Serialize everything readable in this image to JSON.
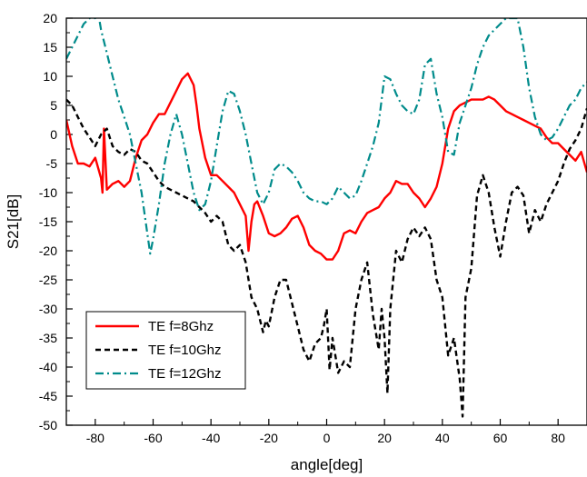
{
  "chart_data": {
    "type": "line",
    "title": "",
    "xlabel": "angle[deg]",
    "ylabel": "S21[dB]",
    "xlim": [
      -90,
      90
    ],
    "ylim": [
      -50,
      20
    ],
    "x_ticks": [
      -80,
      -60,
      -40,
      -20,
      0,
      20,
      40,
      60,
      80
    ],
    "x_tick_labels": [
      "-80",
      "-60",
      "-40",
      "-20",
      "0",
      "20",
      "40",
      "60",
      "80"
    ],
    "y_ticks": [
      20,
      15,
      10,
      5,
      0,
      -5,
      -10,
      -15,
      -20,
      -25,
      -30,
      -35,
      -40,
      -45,
      -50
    ],
    "y_tick_labels": [
      "20",
      "15",
      "10",
      "5",
      "0",
      "-5",
      "-10",
      "-15",
      "-20",
      "-25",
      "-30",
      "-35",
      "-40",
      "-45",
      "-50"
    ],
    "grid": false,
    "legend_position": "bottom-left",
    "series": [
      {
        "name": "TE f=8Ghz",
        "color": "#ff0000",
        "dash": "solid",
        "x": [
          -90,
          -88,
          -86,
          -84,
          -82,
          -80,
          -78,
          -77.5,
          -77,
          -76,
          -74,
          -72,
          -70,
          -68,
          -66,
          -64,
          -62,
          -60,
          -58,
          -56,
          -54,
          -52,
          -50,
          -48,
          -46,
          -45,
          -44,
          -42,
          -40,
          -38,
          -36,
          -34,
          -32,
          -30,
          -28,
          -27,
          -26,
          -25,
          -24,
          -22,
          -20,
          -18,
          -16,
          -14,
          -12,
          -10,
          -8,
          -6,
          -4,
          -2,
          0,
          2,
          4,
          6,
          8,
          10,
          12,
          14,
          16,
          18,
          20,
          22,
          24,
          26,
          28,
          30,
          32,
          34,
          36,
          38,
          40,
          42,
          44,
          46,
          48,
          50,
          52,
          54,
          56,
          58,
          60,
          62,
          64,
          66,
          68,
          70,
          72,
          74,
          76,
          78,
          80,
          82,
          84,
          86,
          88,
          90
        ],
        "y": [
          2.5,
          -2,
          -5,
          -5,
          -5.5,
          -4,
          -7.5,
          -10,
          1,
          -9.5,
          -8.5,
          -8,
          -9,
          -8,
          -4,
          -1,
          0,
          2,
          3.5,
          3.5,
          5.5,
          7.5,
          9.5,
          10.5,
          8.5,
          5,
          1,
          -4,
          -7,
          -7,
          -8,
          -9,
          -10,
          -12,
          -14,
          -20,
          -15,
          -12,
          -11.5,
          -14,
          -17,
          -17.5,
          -17,
          -16,
          -14.5,
          -14,
          -16,
          -19,
          -20,
          -20.5,
          -21.5,
          -21.5,
          -20,
          -17,
          -16.5,
          -17,
          -15,
          -13.5,
          -13,
          -12.5,
          -11,
          -10,
          -8,
          -8.5,
          -8.5,
          -10,
          -11,
          -12.5,
          -11,
          -9,
          -5,
          1,
          4,
          5,
          5.5,
          6,
          6,
          6,
          6.5,
          6,
          5,
          4,
          3.5,
          3,
          2.5,
          2,
          1.5,
          1,
          -0.5,
          -1.5,
          -1.5,
          -2.5,
          -3.5,
          -4.5,
          -3,
          -6.5
        ]
      },
      {
        "name": "TE f=10Ghz",
        "color": "#000000",
        "dash": "dashed",
        "x": [
          -90,
          -88,
          -86,
          -84,
          -82,
          -80,
          -78,
          -76,
          -74,
          -72,
          -70,
          -68,
          -66,
          -64,
          -62,
          -60,
          -58,
          -56,
          -54,
          -52,
          -50,
          -48,
          -46,
          -44,
          -42,
          -40,
          -38,
          -36,
          -34,
          -32,
          -30,
          -28,
          -26,
          -24,
          -22,
          -21,
          -20,
          -18,
          -16,
          -14,
          -12,
          -10,
          -8,
          -6,
          -4,
          -2,
          -1,
          0,
          1,
          2,
          4,
          6,
          8,
          10,
          12,
          14,
          16,
          18,
          19,
          20,
          21,
          22,
          24,
          26,
          28,
          30,
          32,
          34,
          36,
          38,
          40,
          42,
          44,
          46,
          47,
          48,
          50,
          52,
          54,
          56,
          58,
          60,
          62,
          64,
          66,
          68,
          70,
          72,
          74,
          76,
          78,
          80,
          82,
          84,
          86,
          88,
          90
        ],
        "y": [
          6,
          5,
          3,
          1,
          -0.5,
          -2,
          0,
          1,
          -2,
          -3,
          -3.5,
          -2.5,
          -3,
          -4.5,
          -5,
          -6.5,
          -8,
          -9,
          -9.5,
          -10,
          -10.5,
          -11,
          -11.5,
          -12.5,
          -13.5,
          -15,
          -14,
          -15,
          -19,
          -20,
          -19,
          -22,
          -28,
          -30,
          -34,
          -32,
          -33,
          -28,
          -25,
          -25,
          -29,
          -33,
          -37,
          -39,
          -36,
          -35,
          -33,
          -30,
          -40.5,
          -35,
          -41,
          -39,
          -40,
          -30,
          -25,
          -22,
          -31,
          -37,
          -30,
          -35,
          -44.5,
          -30,
          -20,
          -22,
          -18,
          -16,
          -17.5,
          -16,
          -18,
          -25,
          -28,
          -38,
          -35,
          -42,
          -48.5,
          -28,
          -23,
          -10.5,
          -7,
          -10,
          -16,
          -21,
          -15,
          -10,
          -9,
          -10.5,
          -17,
          -13,
          -15,
          -12,
          -10,
          -8,
          -5,
          -2.5,
          -1,
          1,
          4.5
        ]
      },
      {
        "name": "TE f=12Ghz",
        "color": "#008b8b",
        "dash": "dashdot",
        "x": [
          -90,
          -88,
          -86,
          -84,
          -82,
          -80,
          -79,
          -78,
          -76,
          -74,
          -72,
          -70,
          -68,
          -66,
          -64,
          -62,
          -61,
          -60,
          -58,
          -56,
          -54,
          -52,
          -50,
          -48,
          -46,
          -44,
          -42,
          -40,
          -38,
          -36,
          -34,
          -32,
          -30,
          -28,
          -26,
          -24,
          -22,
          -20,
          -18,
          -16,
          -14,
          -12,
          -10,
          -8,
          -6,
          -4,
          -2,
          0,
          2,
          4,
          6,
          8,
          10,
          12,
          14,
          16,
          18,
          20,
          22,
          24,
          26,
          28,
          30,
          32,
          34,
          36,
          38,
          40,
          42,
          44,
          46,
          48,
          50,
          52,
          54,
          56,
          58,
          60,
          62,
          64,
          66,
          68,
          70,
          72,
          74,
          76,
          78,
          80,
          82,
          84,
          86,
          88,
          90
        ],
        "y": [
          13,
          15,
          17,
          19,
          20,
          20,
          21,
          18,
          14,
          10,
          6,
          3,
          0,
          -5,
          -10,
          -17,
          -20.5,
          -18,
          -12,
          -5,
          0,
          3.5,
          0,
          -5,
          -10,
          -13,
          -12,
          -8,
          -2,
          4,
          7.5,
          7,
          4,
          0,
          -5,
          -10,
          -12,
          -10,
          -6,
          -5,
          -5.5,
          -6.5,
          -8,
          -10,
          -11,
          -11.5,
          -11.5,
          -12,
          -11,
          -9,
          -10,
          -11,
          -10.5,
          -8,
          -5,
          -2,
          2,
          10,
          9.5,
          7,
          5,
          4,
          3.5,
          6,
          12,
          13,
          7,
          3,
          -3,
          -3.5,
          2,
          5,
          8,
          12,
          15,
          17,
          18,
          19,
          20,
          20,
          20,
          15,
          8,
          3,
          0,
          -1,
          -0.5,
          1,
          3,
          5,
          6,
          8,
          9
        ]
      }
    ]
  }
}
